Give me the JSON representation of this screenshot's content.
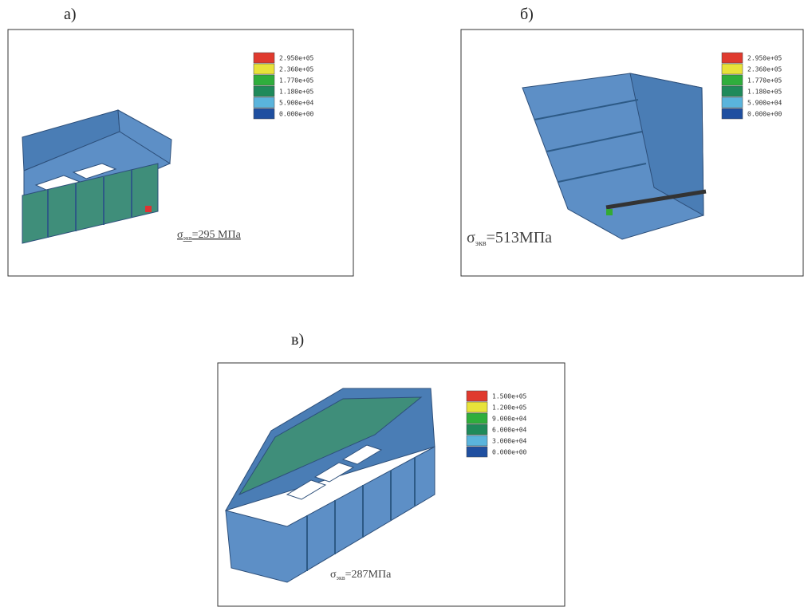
{
  "panels": [
    {
      "label": "а)",
      "legend": [
        "2.950e+05",
        "2.360e+05",
        "1.770e+05",
        "1.180e+05",
        "5.900e+04",
        "0.000e+00"
      ],
      "stress": {
        "symbol": "σ",
        "subscript": "экв",
        "text": "=295 МПа"
      }
    },
    {
      "label": "б)",
      "legend": [
        "2.950e+05",
        "2.360e+05",
        "1.770e+05",
        "1.180e+05",
        "5.900e+04",
        "0.000e+00"
      ],
      "stress": {
        "symbol": "σ",
        "subscript": "экв",
        "text": "=513МПа"
      }
    },
    {
      "label": "в)",
      "legend": [
        "1.500e+05",
        "1.200e+05",
        "9.000e+04",
        "6.000e+04",
        "3.000e+04",
        "0.000e+00"
      ],
      "stress": {
        "symbol": "σ",
        "subscript": "экв",
        "text": "=287МПа"
      }
    }
  ]
}
